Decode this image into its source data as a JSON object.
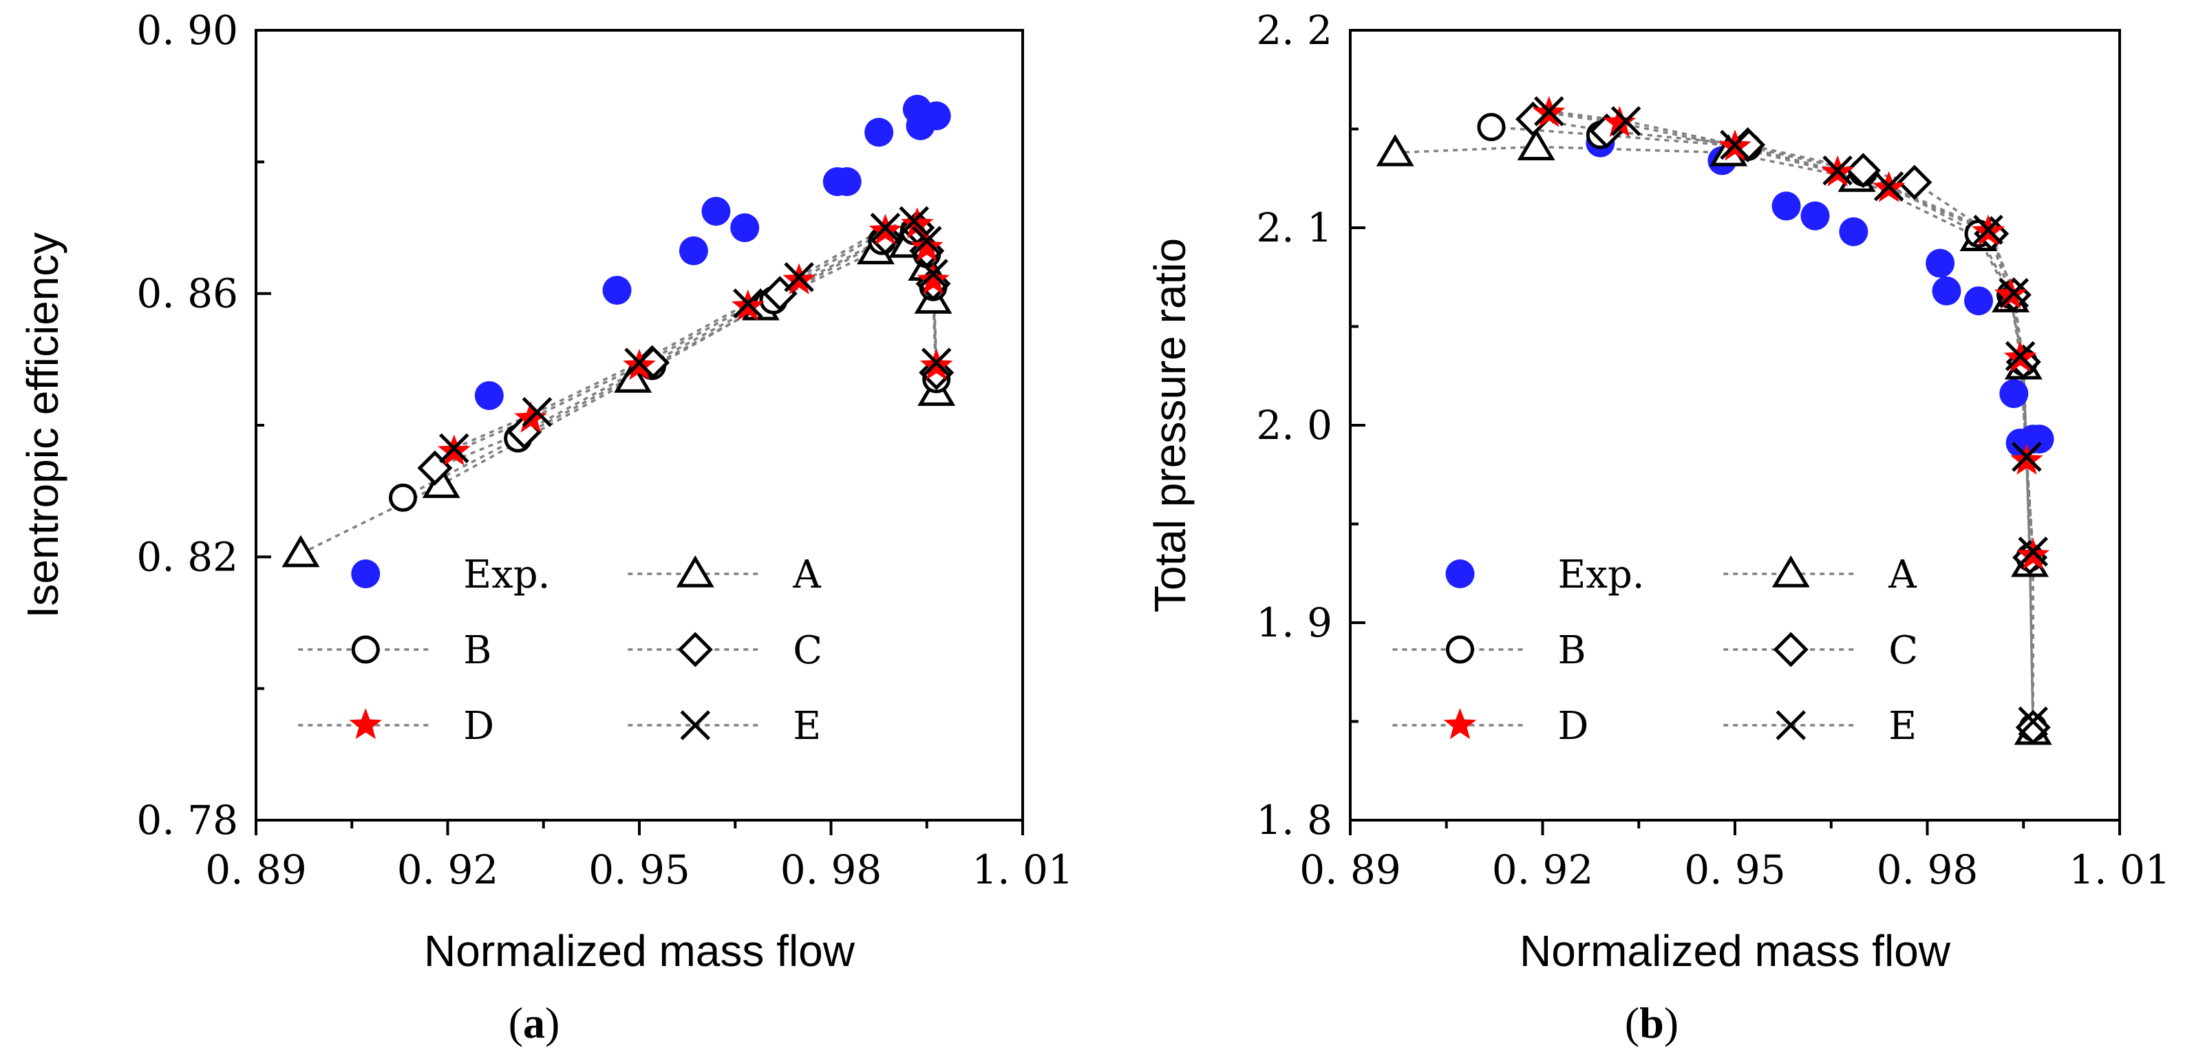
{
  "chart_data": [
    {
      "type": "scatter",
      "panel_label": {
        "open": "(",
        "letter": "a",
        "close": ")"
      },
      "xlabel": "Normalized mass flow",
      "ylabel": "Isentropic efficiency",
      "xlim": [
        0.89,
        1.01
      ],
      "ylim": [
        0.78,
        0.9
      ],
      "xticks": [
        0.89,
        0.92,
        0.95,
        0.98,
        1.01
      ],
      "xtick_labels": [
        "0. 89",
        "0. 92",
        "0. 95",
        "0. 98",
        "1. 01"
      ],
      "yticks": [
        0.78,
        0.82,
        0.86,
        0.9
      ],
      "ytick_labels": [
        "0. 78",
        "0. 82",
        "0. 86",
        "0. 90"
      ],
      "legend_position": "bottom",
      "series": [
        {
          "name": "Exp.",
          "marker": "dot",
          "color": "#1f1fff",
          "line": false,
          "x": [
            0.9265,
            0.9465,
            0.9585,
            0.962,
            0.9665,
            0.981,
            0.9825,
            0.9875,
            0.9935,
            0.994,
            0.9965
          ],
          "y": [
            0.8445,
            0.8605,
            0.8665,
            0.8725,
            0.87,
            0.877,
            0.877,
            0.8845,
            0.888,
            0.8855,
            0.887
          ]
        },
        {
          "name": "A",
          "marker": "triangle",
          "color": "#000000",
          "line": true,
          "x": [
            0.897,
            0.919,
            0.949,
            0.969,
            0.987,
            0.992,
            0.995,
            0.996,
            0.9965
          ],
          "y": [
            0.8205,
            0.831,
            0.847,
            0.858,
            0.8665,
            0.8675,
            0.864,
            0.859,
            0.845
          ]
        },
        {
          "name": "B",
          "marker": "circle",
          "color": "#000000",
          "line": true,
          "x": [
            0.913,
            0.931,
            0.952,
            0.971,
            0.988,
            0.993,
            0.995,
            0.996,
            0.9965
          ],
          "y": [
            0.829,
            0.838,
            0.849,
            0.859,
            0.868,
            0.8695,
            0.866,
            0.861,
            0.847
          ]
        },
        {
          "name": "C",
          "marker": "diamond",
          "color": "#000000",
          "line": true,
          "x": [
            0.918,
            0.932,
            0.952,
            0.972,
            0.9885,
            0.9935,
            0.995,
            0.996,
            0.9965
          ],
          "y": [
            0.8335,
            0.839,
            0.8495,
            0.86,
            0.8685,
            0.87,
            0.8665,
            0.8615,
            0.848
          ]
        },
        {
          "name": "D",
          "marker": "star",
          "color": "#ff0000",
          "line": true,
          "x": [
            0.921,
            0.933,
            0.95,
            0.967,
            0.975,
            0.9885,
            0.9935,
            0.995,
            0.996,
            0.9965
          ],
          "y": [
            0.836,
            0.841,
            0.849,
            0.858,
            0.862,
            0.8695,
            0.8705,
            0.867,
            0.862,
            0.849
          ]
        },
        {
          "name": "E",
          "marker": "x",
          "color": "#000000",
          "line": true,
          "x": [
            0.921,
            0.934,
            0.95,
            0.967,
            0.975,
            0.9885,
            0.993,
            0.995,
            0.996,
            0.9965
          ],
          "y": [
            0.8365,
            0.842,
            0.8495,
            0.8585,
            0.8625,
            0.87,
            0.871,
            0.868,
            0.863,
            0.8495
          ]
        }
      ]
    },
    {
      "type": "scatter",
      "panel_label": {
        "open": "(",
        "letter": "b",
        "close": ")"
      },
      "xlabel": "Normalized mass flow",
      "ylabel": "Total pressure ratio",
      "xlim": [
        0.89,
        1.01
      ],
      "ylim": [
        1.8,
        2.2
      ],
      "xticks": [
        0.89,
        0.92,
        0.95,
        0.98,
        1.01
      ],
      "xtick_labels": [
        "0. 89",
        "0. 92",
        "0. 95",
        "0. 98",
        "1. 01"
      ],
      "yticks": [
        1.8,
        1.9,
        2.0,
        2.1,
        2.2
      ],
      "ytick_labels": [
        "1. 8",
        "1. 9",
        "2. 0",
        "2. 1",
        "2. 2"
      ],
      "legend_position": "bottom",
      "series": [
        {
          "name": "Exp.",
          "marker": "dot",
          "color": "#1f1fff",
          "line": false,
          "x": [
            0.929,
            0.948,
            0.958,
            0.9625,
            0.9685,
            0.982,
            0.983,
            0.988,
            0.9935,
            0.9945,
            0.9965,
            0.9975
          ],
          "y": [
            2.143,
            2.134,
            2.111,
            2.106,
            2.098,
            2.082,
            2.068,
            2.063,
            2.016,
            1.991,
            1.993,
            1.993
          ]
        },
        {
          "name": "A",
          "marker": "triangle",
          "color": "#000000",
          "line": true,
          "x": [
            0.897,
            0.919,
            0.949,
            0.969,
            0.988,
            0.993,
            0.995,
            0.996,
            0.9965
          ],
          "y": [
            2.138,
            2.141,
            2.138,
            2.125,
            2.095,
            2.064,
            2.03,
            1.93,
            1.845
          ]
        },
        {
          "name": "B",
          "marker": "circle",
          "color": "#000000",
          "line": true,
          "x": [
            0.912,
            0.929,
            0.952,
            0.97,
            0.988,
            0.993,
            0.995,
            0.996,
            0.9965
          ],
          "y": [
            2.151,
            2.147,
            2.141,
            2.128,
            2.097,
            2.066,
            2.032,
            1.933,
            1.847
          ]
        },
        {
          "name": "C",
          "marker": "diamond",
          "color": "#000000",
          "line": true,
          "x": [
            0.9185,
            0.93,
            0.952,
            0.97,
            0.978,
            0.99,
            0.9935,
            0.995,
            0.996,
            0.9965
          ],
          "y": [
            2.155,
            2.149,
            2.142,
            2.129,
            2.123,
            2.097,
            2.066,
            2.032,
            1.933,
            1.847
          ]
        },
        {
          "name": "D",
          "marker": "star",
          "color": "#ff0000",
          "line": true,
          "x": [
            0.921,
            0.932,
            0.95,
            0.966,
            0.974,
            0.9895,
            0.993,
            0.9945,
            0.9955,
            0.9965
          ],
          "y": [
            2.158,
            2.153,
            2.141,
            2.128,
            2.12,
            2.098,
            2.066,
            2.034,
            1.982,
            1.934
          ]
        },
        {
          "name": "E",
          "marker": "x",
          "color": "#000000",
          "line": true,
          "x": [
            0.921,
            0.933,
            0.95,
            0.966,
            0.974,
            0.9895,
            0.9935,
            0.9945,
            0.9955,
            0.9965,
            0.9965
          ],
          "y": [
            2.159,
            2.154,
            2.142,
            2.129,
            2.121,
            2.099,
            2.067,
            2.035,
            1.984,
            1.936,
            1.85
          ]
        }
      ]
    }
  ]
}
